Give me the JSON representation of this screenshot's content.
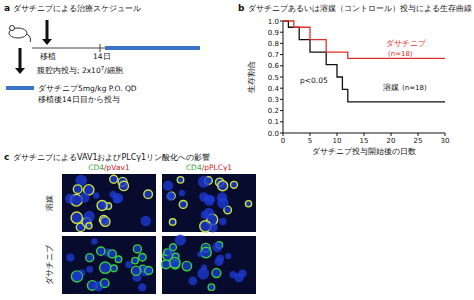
{
  "panel_labels": [
    "a",
    "b",
    "c"
  ],
  "schedule": {
    "title": "ダサチニブによる治療スケジュール",
    "transplant": "移植",
    "day": "14日",
    "injection": "腹腔内投与; 2x10",
    "injection_exp": "7",
    "injection_suffix": "/細胞",
    "drug": "ダサチニブ5mg/kg P.O. QD",
    "drug_start": "移植後14日目から投与"
  },
  "chart_data": {
    "type": "line",
    "title": "ダサチニブあるいは溶媒（コントロール）投与による生存曲線",
    "x_label": "ダサチニブ投与開始後の日数",
    "y_label": "生存割合",
    "annotation": "p<0.05",
    "line_style": "step",
    "xlim": [
      0,
      30
    ],
    "xticks": [
      0,
      5,
      10,
      15,
      20,
      25,
      30
    ],
    "ylim": [
      0,
      1
    ],
    "yticks": [
      {
        "value": 0,
        "label": "0.0"
      },
      0.1,
      0.2,
      0.3,
      0.4,
      0.5,
      0.6,
      0.7,
      0.8,
      0.9,
      {
        "value": 1,
        "label": "1.0"
      }
    ],
    "series": [
      {
        "name": "ダサチニブ",
        "n_label": "(n=18)",
        "color": "#e0302a",
        "x": [
          0,
          2,
          5,
          8,
          12,
          30
        ],
        "values": [
          1,
          0.944,
          0.833,
          0.722,
          0.667,
          0.667
        ]
      },
      {
        "name": "溶媒",
        "n_label": "(n=18)",
        "color": "#111111",
        "x": [
          0,
          1,
          3,
          5,
          8,
          10,
          11,
          12,
          30
        ],
        "values": [
          1,
          0.944,
          0.833,
          0.722,
          0.611,
          0.5,
          0.389,
          0.278,
          0.278
        ]
      }
    ]
  },
  "staining": {
    "title": "ダサチニブによるVAV1およびPLCγ1リン酸化への影響",
    "columns": [
      [
        "CD4",
        "/pVav1"
      ],
      [
        "CD4",
        "/pPLCγ1"
      ]
    ],
    "rows": [
      "溶媒",
      "ダサチニブ"
    ]
  }
}
